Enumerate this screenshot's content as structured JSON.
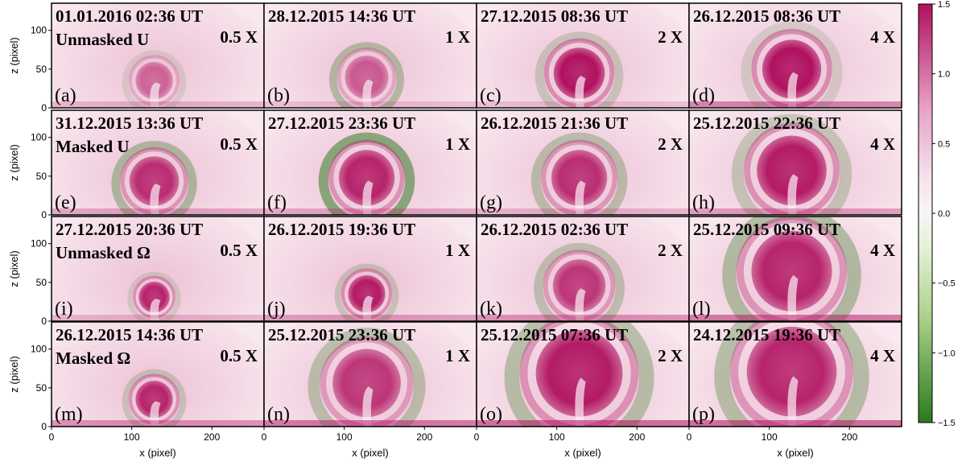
{
  "chart_data": {
    "type": "heatmap",
    "rows": 4,
    "cols": 4,
    "xlabel": "x (pixel)",
    "ylabel": "z (pixel)",
    "xticks": [
      0,
      100,
      200
    ],
    "yticks": [
      0,
      50,
      100
    ],
    "xlim": [
      0,
      265
    ],
    "ylim": [
      0,
      135
    ],
    "colorbar": {
      "range": [
        -1.5,
        1.5
      ],
      "ticks": [
        "1.5",
        "1.0",
        "0.5",
        "0.0",
        "−0.5",
        "−1.0",
        "−1.5"
      ],
      "colors": {
        "high": "#b0115f",
        "mid": "#f7f5f5",
        "low": "#2a7a1c"
      }
    },
    "panels": [
      {
        "letter": "(a)",
        "date": "01.01.2016",
        "time": "02:36 UT",
        "label": "Unmasked U",
        "scale": "0.5 X",
        "bubble_strength": 0.55,
        "bubble_r": 24,
        "green_shell": 0.2,
        "base_mag": 0.4
      },
      {
        "letter": "(b)",
        "date": "28.12.2015",
        "time": "14:36 UT",
        "label": "",
        "scale": "1 X",
        "bubble_strength": 0.6,
        "bubble_r": 28,
        "green_shell": 0.55,
        "base_mag": 0.3
      },
      {
        "letter": "(c)",
        "date": "27.12.2015",
        "time": "08:36 UT",
        "label": "",
        "scale": "2 X",
        "bubble_strength": 1.0,
        "bubble_r": 33,
        "green_shell": 0.35,
        "base_mag": 0.3
      },
      {
        "letter": "(d)",
        "date": "26.12.2015",
        "time": "08:36 UT",
        "label": "",
        "scale": "4 X",
        "bubble_strength": 1.0,
        "bubble_r": 38,
        "green_shell": 0.25,
        "base_mag": 0.8
      },
      {
        "letter": "(e)",
        "date": "31.12.2015",
        "time": "13:36 UT",
        "label": "Masked U",
        "scale": "0.5 X",
        "bubble_strength": 0.85,
        "bubble_r": 32,
        "green_shell": 0.6,
        "base_mag": 0.5
      },
      {
        "letter": "(f)",
        "date": "27.12.2015",
        "time": "23:36 UT",
        "label": "",
        "scale": "1 X",
        "bubble_strength": 0.9,
        "bubble_r": 36,
        "green_shell": 0.95,
        "base_mag": 0.5
      },
      {
        "letter": "(g)",
        "date": "26.12.2015",
        "time": "21:36 UT",
        "label": "",
        "scale": "2 X",
        "bubble_strength": 0.85,
        "bubble_r": 36,
        "green_shell": 0.5,
        "base_mag": 0.4
      },
      {
        "letter": "(h)",
        "date": "25.12.2015",
        "time": "22:36 UT",
        "label": "",
        "scale": "4 X",
        "bubble_strength": 0.95,
        "bubble_r": 45,
        "green_shell": 0.4,
        "base_mag": 0.6
      },
      {
        "letter": "(i)",
        "date": "27.12.2015",
        "time": "20:36 UT",
        "label": "Unmasked Ω",
        "scale": "0.5 X",
        "bubble_strength": 0.9,
        "bubble_r": 20,
        "green_shell": 0.25,
        "base_mag": 0.4
      },
      {
        "letter": "(j)",
        "date": "26.12.2015",
        "time": "19:36 UT",
        "label": "",
        "scale": "1 X",
        "bubble_strength": 0.95,
        "bubble_r": 24,
        "green_shell": 0.35,
        "base_mag": 0.6
      },
      {
        "letter": "(k)",
        "date": "26.12.2015",
        "time": "02:36 UT",
        "label": "",
        "scale": "2 X",
        "bubble_strength": 0.8,
        "bubble_r": 34,
        "green_shell": 0.45,
        "base_mag": 0.7
      },
      {
        "letter": "(l)",
        "date": "25.12.2015",
        "time": "09:36 UT",
        "label": "",
        "scale": "4 X",
        "bubble_strength": 0.9,
        "bubble_r": 52,
        "green_shell": 0.6,
        "base_mag": 0.9
      },
      {
        "letter": "(m)",
        "date": "26.12.2015",
        "time": "14:36 UT",
        "label": "Masked Ω",
        "scale": "0.5 X",
        "bubble_strength": 0.9,
        "bubble_r": 24,
        "green_shell": 0.35,
        "base_mag": 0.7
      },
      {
        "letter": "(n)",
        "date": "25.12.2015",
        "time": "23:36 UT",
        "label": "",
        "scale": "1 X",
        "bubble_strength": 0.8,
        "bubble_r": 44,
        "green_shell": 0.5,
        "base_mag": 0.9
      },
      {
        "letter": "(o)",
        "date": "25.12.2015",
        "time": "07:36 UT",
        "label": "",
        "scale": "2 X",
        "bubble_strength": 0.95,
        "bubble_r": 56,
        "green_shell": 0.55,
        "base_mag": 1.0
      },
      {
        "letter": "(p)",
        "date": "24.12.2015",
        "time": "19:36 UT",
        "label": "",
        "scale": "4 X",
        "bubble_strength": 0.9,
        "bubble_r": 58,
        "green_shell": 0.55,
        "base_mag": 1.0
      }
    ]
  }
}
